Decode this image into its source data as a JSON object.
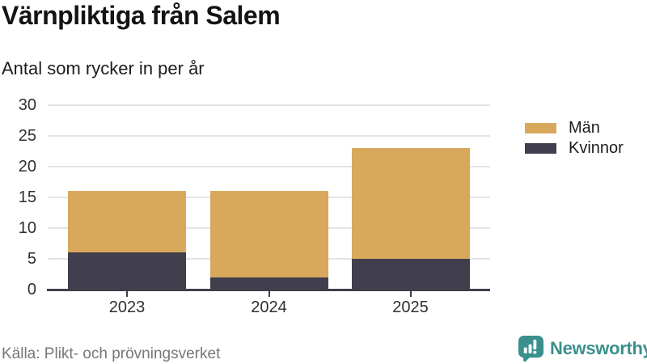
{
  "header": {
    "title": "Värnpliktiga från Salem",
    "subtitle": "Antal som rycker in per år"
  },
  "chart_data": {
    "type": "bar",
    "stacked": true,
    "title": "Värnpliktiga från Salem",
    "subtitle": "Antal som rycker in per år",
    "categories": [
      "2023",
      "2024",
      "2025"
    ],
    "series": [
      {
        "name": "Män",
        "color": "#d8a95c",
        "values": [
          10,
          14,
          18
        ]
      },
      {
        "name": "Kvinnor",
        "color": "#413f4d",
        "values": [
          6,
          2,
          5
        ]
      }
    ],
    "stack_totals": [
      16,
      16,
      23
    ],
    "ylim": [
      0,
      30
    ],
    "yticks": [
      0,
      5,
      10,
      15,
      20,
      25,
      30
    ],
    "xlabel": "",
    "ylabel": "",
    "grid": true,
    "legend_position": "right"
  },
  "footer": {
    "source": "Källa: Plikt- och prövningsverket",
    "brand": "Newsworthy"
  },
  "colors": {
    "men_bar": "#d8a95c",
    "women_bar": "#413f4d",
    "axis": "#403e4c",
    "gridline": "#e4e4e4",
    "title_text": "#141414",
    "tick_label": "#2f2f33",
    "source_text": "#76757b",
    "brand_teal": "#3a908c"
  }
}
